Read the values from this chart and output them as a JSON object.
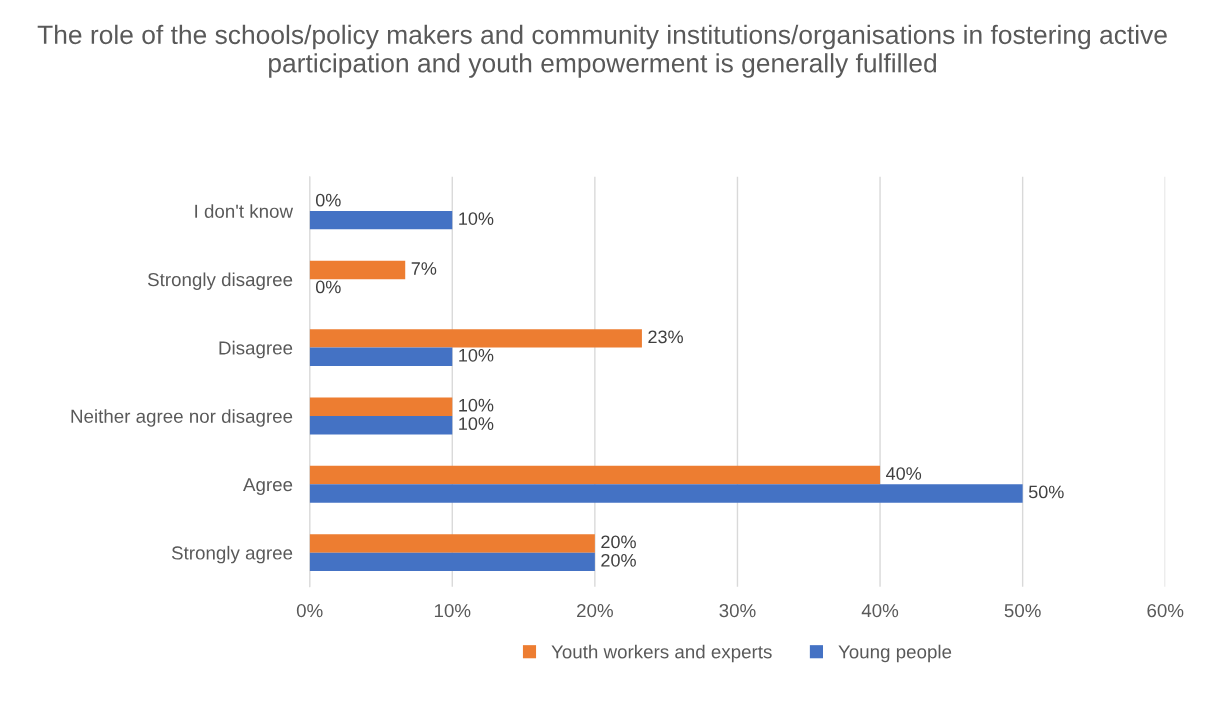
{
  "chart_data": {
    "type": "bar",
    "orientation": "horizontal",
    "title": "The role of the schools/policy makers and community institutions/organisations in fostering active participation and youth empowerment is generally fulfilled",
    "categories": [
      "I don't know",
      "Strongly disagree",
      "Disagree",
      "Neither agree nor disagree",
      "Agree",
      "Strongly agree"
    ],
    "series": [
      {
        "name": "Youth workers and experts",
        "color": "#ed7d31",
        "values": [
          0,
          6.7,
          23.3,
          10,
          40,
          20
        ],
        "value_labels": [
          "0%",
          "7%",
          "23%",
          "10%",
          "40%",
          "20%"
        ]
      },
      {
        "name": "Young people",
        "color": "#4472c4",
        "values": [
          10,
          0,
          10,
          10,
          50,
          20
        ],
        "value_labels": [
          "10%",
          "0%",
          "10%",
          "10%",
          "50%",
          "20%"
        ]
      }
    ],
    "xlim": [
      0,
      60
    ],
    "xticks": [
      {
        "value": 0,
        "label": "0%"
      },
      {
        "value": 10,
        "label": "10%"
      },
      {
        "value": 20,
        "label": "20%"
      },
      {
        "value": 30,
        "label": "30%"
      },
      {
        "value": 40,
        "label": "40%"
      },
      {
        "value": 50,
        "label": "50%"
      },
      {
        "value": 60,
        "label": "60%"
      }
    ],
    "grid": "x",
    "legend": "bottom"
  }
}
